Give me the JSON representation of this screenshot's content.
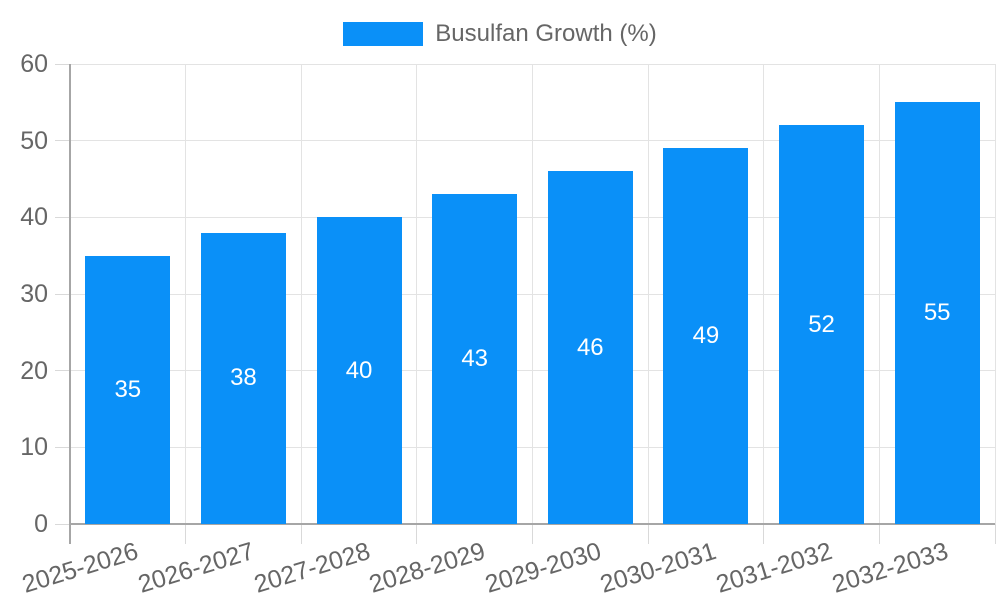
{
  "chart_data": {
    "type": "bar",
    "title": "Busulfan Growth (%)",
    "legend": {
      "label": "Busulfan Growth (%)",
      "position": "top-center"
    },
    "categories": [
      "2025-2026",
      "2026-2027",
      "2027-2028",
      "2028-2029",
      "2029-2030",
      "2030-2031",
      "2031-2032",
      "2032-2033"
    ],
    "values": [
      35,
      38,
      40,
      43,
      46,
      49,
      52,
      55
    ],
    "xlabel": "",
    "ylabel": "",
    "ylim": [
      0,
      60
    ],
    "yticks": [
      0,
      10,
      20,
      30,
      40,
      50,
      60
    ],
    "grid": true,
    "x_label_rotation_deg": -17,
    "value_labels_position": "inside-center",
    "colors": {
      "bar": "#0a90f8",
      "value_label": "#ffffff",
      "axis_label": "#666666",
      "legend_text": "#666666",
      "axis_line": "#a6a6a6",
      "gridline": "#e3e3e3",
      "tick": "#d9d9d9",
      "background": "#ffffff"
    }
  }
}
